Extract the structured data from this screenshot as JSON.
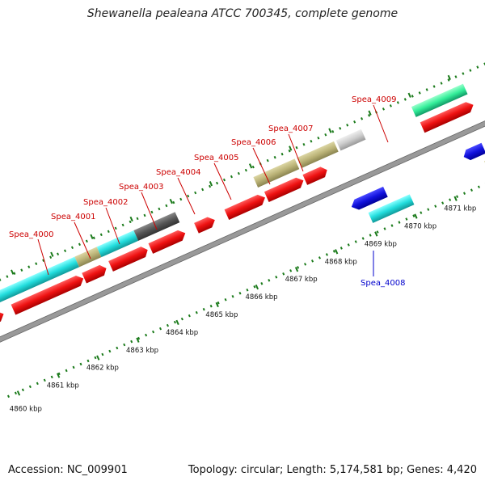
{
  "title": "Shewanella pealeana ATCC 700345, complete genome",
  "footer": {
    "accession": "Accession: NC_009901",
    "summary": "Topology: circular; Length: 5,174,581 bp; Genes: 4,420"
  },
  "ticks": [
    "4860 kbp",
    "4861 kbp",
    "4862 kbp",
    "4863 kbp",
    "4864 kbp",
    "4865 kbp",
    "4866 kbp",
    "4867 kbp",
    "4868 kbp",
    "4869 kbp",
    "4870 kbp",
    "4871 kbp"
  ],
  "genes": [
    {
      "label": "Spea_4000",
      "color": "#cc0000"
    },
    {
      "label": "Spea_4001",
      "color": "#cc0000"
    },
    {
      "label": "Spea_4002",
      "color": "#cc0000"
    },
    {
      "label": "Spea_4003",
      "color": "#cc0000"
    },
    {
      "label": "Spea_4004",
      "color": "#cc0000"
    },
    {
      "label": "Spea_4005",
      "color": "#cc0000"
    },
    {
      "label": "Spea_4006",
      "color": "#cc0000"
    },
    {
      "label": "Spea_4007",
      "color": "#cc0000"
    },
    {
      "label": "Spea_4008",
      "color": "#0000cc"
    },
    {
      "label": "Spea_4009",
      "color": "#cc0000"
    }
  ],
  "colors": {
    "backbone": "#888888",
    "tick": "#1a7a1a",
    "cds_forward": "#ee1111",
    "cds_reverse": "#1111dd",
    "cyan": "#22dddd",
    "olive": "#bbb377",
    "dark_gray": "#555555",
    "light_gray": "#cccccc",
    "spring_green": "#33ee99"
  }
}
